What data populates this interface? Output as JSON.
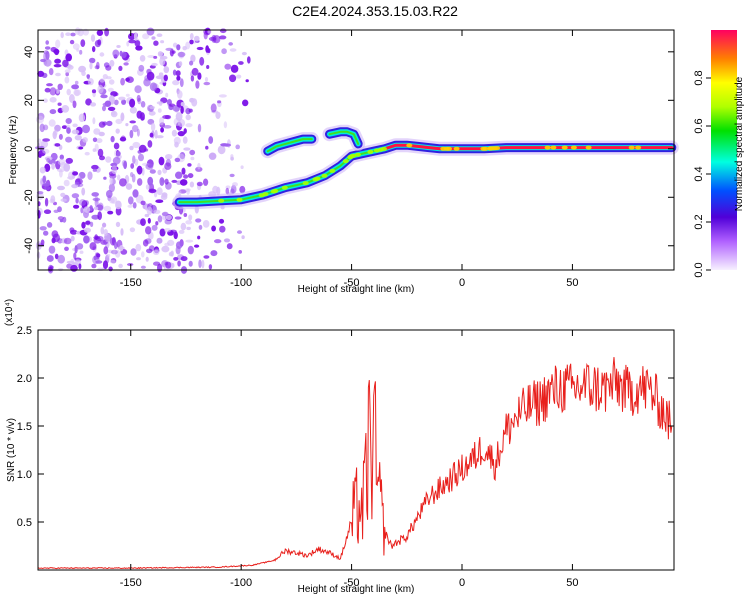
{
  "title": "C2E4.2024.353.15.03.R22",
  "colorbar": {
    "label": "Normalized spectral amplitude",
    "ticks": [
      "0.0",
      "0.2",
      "0.4",
      "0.6",
      "0.8"
    ]
  },
  "chart_data": [
    {
      "type": "heatmap",
      "xlabel": "Height of straight line (km)",
      "ylabel": "Frequency (Hz)",
      "xlim": [
        -192,
        96
      ],
      "ylim": [
        -50,
        49
      ],
      "xticks": [
        "-150",
        "-100",
        "-50",
        "0",
        "50"
      ],
      "yticks": [
        "-40",
        "-20",
        "0",
        "20",
        "40"
      ],
      "noise_region_x": [
        -192,
        -95
      ],
      "trace": {
        "x": [
          -128,
          -120,
          -110,
          -100,
          -90,
          -80,
          -70,
          -62,
          -55,
          -50,
          -45,
          -40,
          -35,
          -30,
          -25,
          -20,
          -15,
          -10,
          -5,
          0,
          10,
          20,
          40,
          60,
          80,
          95
        ],
        "y": [
          -22,
          -22,
          -21.5,
          -21,
          -19,
          -16,
          -14,
          -11,
          -7,
          -3,
          -2,
          -1,
          0,
          1.5,
          1.5,
          1,
          0.5,
          0,
          0,
          0,
          0,
          0.5,
          0.5,
          0.5,
          0.5,
          0.5
        ]
      },
      "branch": {
        "x": [
          -88,
          -84,
          -80,
          -76,
          -72,
          -68
        ],
        "y": [
          -1,
          1,
          2,
          3,
          4,
          4
        ]
      },
      "branch2": {
        "x": [
          -60,
          -55,
          -52,
          -49,
          -47
        ],
        "y": [
          6,
          7,
          7,
          6,
          2
        ]
      }
    },
    {
      "type": "line",
      "xlabel": "Height of straight line (km)",
      "ylabel": "SNR (10 * v/v)",
      "scale_note": "(x10⁴)",
      "xlim": [
        -192,
        96
      ],
      "ylim": [
        0,
        2.5
      ],
      "xticks": [
        "-150",
        "-100",
        "-50",
        "0",
        "50"
      ],
      "yticks": [
        "0.5",
        "1.0",
        "1.5",
        "2.0",
        "2.5"
      ],
      "color": "#e8201c",
      "series": [
        {
          "x": [
            -192,
            -150,
            -110,
            -95,
            -85,
            -80,
            -75,
            -70,
            -65,
            -60,
            -55,
            -50,
            -47,
            -45,
            -42,
            -40,
            -38,
            -35,
            -32,
            -30,
            -25,
            -20,
            -15,
            -10,
            -5,
            0,
            5,
            10,
            15,
            20,
            25,
            30,
            35,
            40,
            45,
            50,
            55,
            60,
            65,
            70,
            75,
            80,
            85,
            90,
            95
          ],
          "y": [
            0.02,
            0.02,
            0.03,
            0.05,
            0.1,
            0.2,
            0.18,
            0.15,
            0.22,
            0.18,
            0.12,
            0.5,
            0.7,
            0.6,
            1.3,
            1.4,
            0.8,
            0.4,
            0.25,
            0.28,
            0.35,
            0.55,
            0.75,
            0.85,
            0.95,
            1.05,
            1.15,
            1.3,
            1.1,
            1.45,
            1.6,
            1.7,
            1.75,
            1.85,
            1.9,
            1.88,
            1.92,
            1.9,
            1.88,
            1.95,
            1.85,
            1.9,
            1.88,
            1.7,
            1.5
          ]
        }
      ]
    }
  ]
}
